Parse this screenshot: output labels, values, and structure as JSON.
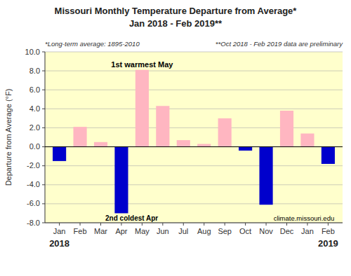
{
  "chart_data": {
    "type": "bar",
    "title": "Missouri Monthly Temperature Departure from Average*",
    "subtitle": "Jan 2018 - Feb 2019**",
    "notes": [
      "*Long-term average: 1895-2010",
      "**Oct 2018 - Feb 2019 data are preliminary"
    ],
    "y_label": "Departure from Average (°F)",
    "categories": [
      "Jan",
      "Feb",
      "Mar",
      "Apr",
      "May",
      "Jun",
      "Jul",
      "Aug",
      "Sep",
      "Oct",
      "Nov",
      "Dec",
      "Jan",
      "Feb"
    ],
    "years": [
      "2018",
      null,
      null,
      null,
      null,
      null,
      null,
      null,
      null,
      null,
      null,
      null,
      null,
      "2019"
    ],
    "values": [
      -1.5,
      2.1,
      0.5,
      -7.0,
      8.1,
      4.3,
      0.7,
      0.3,
      3.0,
      -0.4,
      -6.1,
      3.8,
      1.4,
      -1.8
    ],
    "colors": [
      "#0000CC",
      "#FFB6C1",
      "#FFB6C1",
      "#0000CC",
      "#FFB6C1",
      "#FFB6C1",
      "#FFB6C1",
      "#FFB6C1",
      "#FFB6C1",
      "#0000CC",
      "#0000CC",
      "#FFB6C1",
      "#FFB6C1",
      "#0000CC"
    ],
    "ylim": [
      -8.0,
      10.0
    ],
    "yticks": [
      {
        "value": -8.0,
        "label": "-8.0"
      },
      {
        "value": -6.0,
        "label": "-6.0"
      },
      {
        "value": -4.0,
        "label": "-4.0"
      },
      {
        "value": -2.0,
        "label": "-2.0"
      },
      {
        "value": 0.0,
        "label": "0.0"
      },
      {
        "value": 2.0,
        "label": "2.0"
      },
      {
        "value": 4.0,
        "label": "4.0"
      },
      {
        "value": 6.0,
        "label": "6.0"
      },
      {
        "value": 8.0,
        "label": "8.0"
      },
      {
        "value": 10.0,
        "label": "10.0"
      }
    ],
    "annotations": [
      "1st warmest May",
      "2nd coldest Apr",
      "climate.missouri.edu"
    ],
    "grid": true
  }
}
